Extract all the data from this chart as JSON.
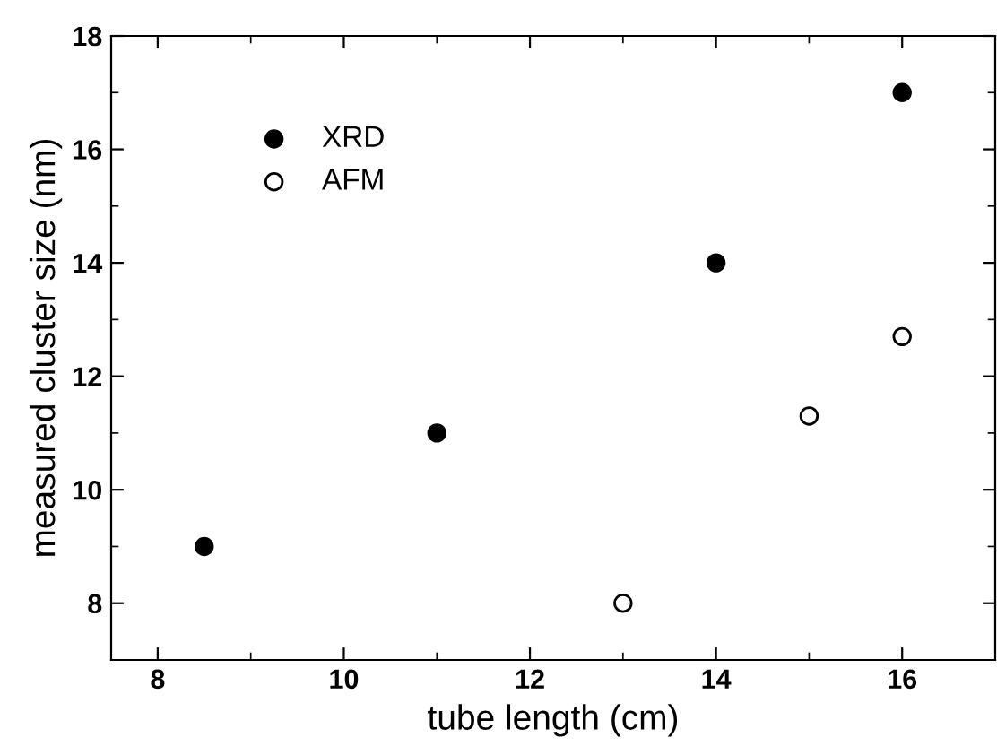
{
  "chart_data": {
    "type": "scatter",
    "xlabel": "tube length (cm)",
    "ylabel": "measured cluster size (nm)",
    "xlim": [
      7.5,
      17
    ],
    "xticks": [
      8,
      10,
      12,
      14,
      16
    ],
    "ylim": [
      7,
      18
    ],
    "yticks": [
      8,
      10,
      12,
      14,
      16,
      18
    ],
    "grid": false,
    "legend": "top left",
    "marker": "circle",
    "series": [
      {
        "name": "XRD",
        "color": "#000000",
        "x": [
          8.5,
          11,
          14,
          16
        ],
        "values": [
          9,
          11,
          14,
          17
        ]
      },
      {
        "name": "AFM",
        "color": "#ffffff",
        "x": [
          13,
          15,
          16
        ],
        "values": [
          8,
          11.3,
          12.7
        ]
      }
    ]
  }
}
